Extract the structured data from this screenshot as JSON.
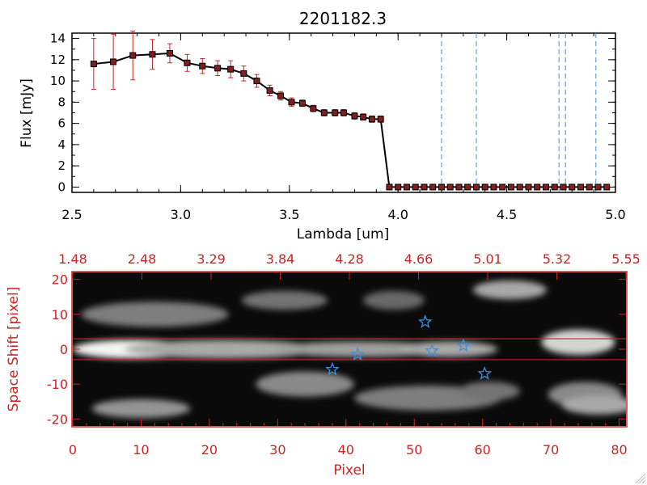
{
  "chart_data": [
    {
      "type": "line",
      "title": "2201182.3",
      "xlabel": "Lambda [um]",
      "ylabel": "Flux [mJy]",
      "xlim": [
        2.5,
        5.0
      ],
      "ylim": [
        -0.5,
        14.5
      ],
      "xticks": [
        "2.5",
        "3.0",
        "3.5",
        "4.0",
        "4.5",
        "5.0"
      ],
      "yticks": [
        "0",
        "2",
        "4",
        "6",
        "8",
        "10",
        "12",
        "14"
      ],
      "series": [
        {
          "name": "flux",
          "color": "#000000",
          "marker_color": "#7f1f1f",
          "errorbar_color": "#cc2222",
          "x": [
            2.6,
            2.69,
            2.78,
            2.87,
            2.95,
            3.03,
            3.1,
            3.17,
            3.23,
            3.29,
            3.35,
            3.41,
            3.46,
            3.51,
            3.56,
            3.61,
            3.66,
            3.71,
            3.75,
            3.8,
            3.84,
            3.88,
            3.92,
            3.96,
            4.0,
            4.04,
            4.08,
            4.12,
            4.16,
            4.2,
            4.24,
            4.28,
            4.32,
            4.36,
            4.4,
            4.44,
            4.48,
            4.52,
            4.56,
            4.6,
            4.64,
            4.68,
            4.72,
            4.76,
            4.8,
            4.84,
            4.88,
            4.92,
            4.96
          ],
          "y": [
            11.6,
            11.8,
            12.4,
            12.5,
            12.6,
            11.7,
            11.4,
            11.2,
            11.1,
            10.7,
            10.0,
            9.1,
            8.6,
            8.0,
            7.9,
            7.4,
            7.0,
            7.0,
            7.0,
            6.7,
            6.6,
            6.4,
            6.4,
            0.0,
            0.0,
            0.0,
            0.0,
            0.0,
            0.0,
            0.0,
            0.0,
            0.0,
            0.0,
            0.0,
            0.0,
            0.0,
            0.0,
            0.0,
            0.0,
            0.0,
            0.0,
            0.0,
            0.0,
            0.0,
            0.0,
            0.0,
            0.0,
            0.0,
            0.0
          ],
          "yerr": [
            2.4,
            2.6,
            2.3,
            1.4,
            0.9,
            0.8,
            0.7,
            0.7,
            0.8,
            0.7,
            0.6,
            0.5,
            0.4,
            0.4,
            0.3,
            0.3,
            0.3,
            0.3,
            0.3,
            0.3,
            0.3,
            0.3,
            0.3,
            0,
            0,
            0,
            0,
            0,
            0,
            0,
            0,
            0,
            0,
            0,
            0,
            0,
            0,
            0,
            0,
            0,
            0,
            0,
            0,
            0,
            0,
            0,
            0,
            0,
            0
          ]
        }
      ],
      "vlines": {
        "color": "#3a8fe0",
        "x": [
          4.2,
          4.36,
          4.74,
          4.77,
          4.91
        ]
      },
      "zero_line_color": "#cc2222"
    },
    {
      "type": "heatmap",
      "xlabel": "Pixel",
      "ylabel": "Space Shift [pixel]",
      "axis_color": "#cc2222",
      "xlim": [
        0,
        81
      ],
      "ylim": [
        -22,
        22
      ],
      "xticks": [
        "0",
        "10",
        "20",
        "30",
        "40",
        "50",
        "60",
        "70",
        "80"
      ],
      "yticks": [
        "-20",
        "-10",
        "0",
        "10",
        "20"
      ],
      "top_ticks": [
        "1.48",
        "2.48",
        "3.29",
        "3.84",
        "4.28",
        "4.66",
        "5.01",
        "5.32",
        "5.55"
      ],
      "aperture_lines_y": [
        3,
        -3
      ],
      "blobs": [
        {
          "x": 9,
          "y": 0,
          "w": 10,
          "h": 3,
          "level": 0.95
        },
        {
          "x": 22,
          "y": 0,
          "w": 16,
          "h": 3,
          "level": 0.6
        },
        {
          "x": 42,
          "y": 0,
          "w": 14,
          "h": 2.5,
          "level": 0.55
        },
        {
          "x": 55,
          "y": 0,
          "w": 8,
          "h": 2.5,
          "level": 0.6
        },
        {
          "x": 74,
          "y": 2,
          "w": 6,
          "h": 4,
          "level": 0.8
        },
        {
          "x": 12,
          "y": 10,
          "w": 12,
          "h": 4,
          "level": 0.4
        },
        {
          "x": 31,
          "y": 14,
          "w": 7,
          "h": 3,
          "level": 0.35
        },
        {
          "x": 64,
          "y": 17,
          "w": 6,
          "h": 3,
          "level": 0.6
        },
        {
          "x": 47,
          "y": 14,
          "w": 5,
          "h": 3,
          "level": 0.3
        },
        {
          "x": 34,
          "y": -10,
          "w": 8,
          "h": 4,
          "level": 0.45
        },
        {
          "x": 52,
          "y": -14,
          "w": 12,
          "h": 4,
          "level": 0.4
        },
        {
          "x": 75,
          "y": -13,
          "w": 6,
          "h": 4,
          "level": 0.45
        },
        {
          "x": 10,
          "y": -17,
          "w": 8,
          "h": 3,
          "level": 0.5
        },
        {
          "x": 77,
          "y": -16,
          "w": 6,
          "h": 3,
          "level": 0.6
        },
        {
          "x": 61,
          "y": -12,
          "w": 5,
          "h": 3,
          "level": 0.35
        }
      ],
      "stars": {
        "color": "#3a8fe0",
        "points": [
          {
            "x": 38.0,
            "y": -5.8
          },
          {
            "x": 41.7,
            "y": -1.5
          },
          {
            "x": 51.6,
            "y": 7.8
          },
          {
            "x": 52.6,
            "y": -0.5
          },
          {
            "x": 57.2,
            "y": 1.0
          },
          {
            "x": 60.3,
            "y": -7.0
          }
        ]
      }
    }
  ]
}
